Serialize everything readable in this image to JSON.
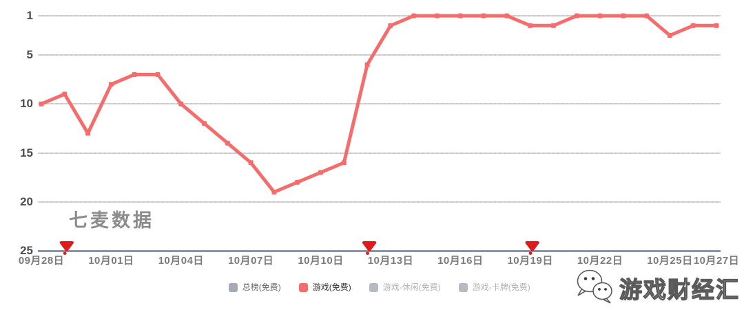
{
  "watermark": "七麦数据",
  "branding": {
    "name": "游戏财经汇"
  },
  "colors": {
    "line": "#f56c6c",
    "pin": "#e0191d",
    "gridline": "#d3d3d3",
    "axis_baseline": "#8b93a3",
    "y_label": "#4d4d4d",
    "x_label": "#7b7b7b",
    "watermark": "#8c8c8c"
  },
  "chart_data": {
    "type": "line",
    "title": "",
    "xlabel": "",
    "ylabel": "",
    "y_axis_inverted": true,
    "ylim": [
      1,
      25
    ],
    "grid": true,
    "legend_position": "bottom",
    "x": [
      "09月28日",
      "09月29日",
      "09月30日",
      "10月01日",
      "10月02日",
      "10月03日",
      "10月04日",
      "10月05日",
      "10月06日",
      "10月07日",
      "10月08日",
      "10月09日",
      "10月10日",
      "10月11日",
      "10月12日",
      "10月13日",
      "10月14日",
      "10月15日",
      "10月16日",
      "10月17日",
      "10月18日",
      "10月19日",
      "10月20日",
      "10月21日",
      "10月22日",
      "10月23日",
      "10月24日",
      "10月25日",
      "10月26日",
      "10月27日"
    ],
    "x_tick_labels": [
      "09月28日",
      "10月01日",
      "10月04日",
      "10月07日",
      "10月10日",
      "10月13日",
      "10月16日",
      "10月19日",
      "10月22日",
      "10月25日",
      "10月27日"
    ],
    "x_tick_days": [
      0,
      3,
      6,
      9,
      12,
      15,
      18,
      21,
      24,
      27,
      29
    ],
    "y_ticks": [
      1,
      5,
      10,
      15,
      20,
      25
    ],
    "series": [
      {
        "name": "游戏(免费)",
        "color": "#f56c6c",
        "values": [
          10,
          9,
          13,
          8,
          7,
          7,
          10,
          12,
          14,
          16,
          19,
          18,
          17,
          16,
          6,
          2,
          1,
          1,
          1,
          1,
          1,
          2,
          2,
          1,
          1,
          1,
          1,
          3,
          2,
          2
        ]
      }
    ],
    "legend": [
      {
        "label": "总榜(免费)",
        "color": "#a5aab4",
        "text_color": "#666666"
      },
      {
        "label": "游戏(免费)",
        "color": "#f56c6c",
        "text_color": "#333333"
      },
      {
        "label": "游戏-休闲(免费)",
        "color": "#b5bac3",
        "text_color": "#b3b3b3"
      },
      {
        "label": "游戏-卡牌(免费)",
        "color": "#b5bac3",
        "text_color": "#b3b3b3"
      }
    ],
    "event_pins": {
      "days": [
        1,
        14,
        21
      ],
      "color": "#e0191d",
      "icon": "map-pin"
    }
  }
}
